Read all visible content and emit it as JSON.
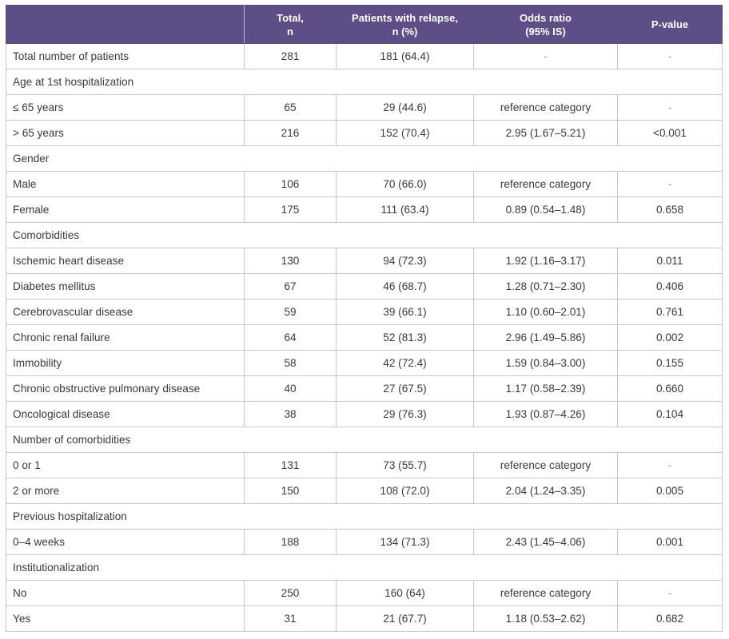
{
  "header": {
    "col0": "",
    "col1_line1": "Total,",
    "col1_line2": "n",
    "col2_line1": "Patients with relapse,",
    "col2_line2": "n (%)",
    "col3_line1": "Odds ratio",
    "col3_line2": "(95% IS)",
    "col4": "P-value"
  },
  "rows": [
    {
      "type": "data",
      "label": "Total number of patients",
      "total": "281",
      "relapse": "181 (64.4)",
      "or": "-",
      "p": "-"
    },
    {
      "type": "section",
      "label": "Age at 1st hospitalization"
    },
    {
      "type": "data",
      "label": "≤ 65 years",
      "total": "65",
      "relapse": "29 (44.6)",
      "or": "reference category",
      "p": "-"
    },
    {
      "type": "data",
      "label": "> 65 years",
      "total": "216",
      "relapse": "152 (70.4)",
      "or": "2.95 (1.67–5.21)",
      "p": "<0.001"
    },
    {
      "type": "section",
      "label": "Gender"
    },
    {
      "type": "data",
      "label": "Male",
      "total": "106",
      "relapse": "70 (66.0)",
      "or": "reference category",
      "p": "-"
    },
    {
      "type": "data",
      "label": "Female",
      "total": "175",
      "relapse": "111 (63.4)",
      "or": "0.89 (0.54–1.48)",
      "p": "0.658"
    },
    {
      "type": "section",
      "label": "Comorbidities"
    },
    {
      "type": "data",
      "label": "Ischemic heart disease",
      "total": "130",
      "relapse": "94 (72.3)",
      "or": "1.92 (1.16–3.17)",
      "p": "0.011"
    },
    {
      "type": "data",
      "label": "Diabetes mellitus",
      "total": "67",
      "relapse": "46 (68.7)",
      "or": "1.28 (0.71–2.30)",
      "p": "0.406"
    },
    {
      "type": "data",
      "label": "Cerebrovascular disease",
      "total": "59",
      "relapse": "39 (66.1)",
      "or": "1.10 (0.60–2.01)",
      "p": "0.761"
    },
    {
      "type": "data",
      "label": "Chronic renal failure",
      "total": "64",
      "relapse": "52 (81.3)",
      "or": "2.96 (1.49–5.86)",
      "p": "0.002"
    },
    {
      "type": "data",
      "label": "Immobility",
      "total": "58",
      "relapse": "42 (72.4)",
      "or": "1.59 (0.84–3.00)",
      "p": "0.155"
    },
    {
      "type": "data",
      "label": "Chronic obstructive pulmonary disease",
      "total": "40",
      "relapse": "27 (67.5)",
      "or": "1.17 (0.58–2.39)",
      "p": "0.660"
    },
    {
      "type": "data",
      "label": "Oncological disease",
      "total": "38",
      "relapse": "29 (76.3)",
      "or": "1.93 (0.87–4.26)",
      "p": "0.104"
    },
    {
      "type": "section",
      "label": "Number of comorbidities"
    },
    {
      "type": "data",
      "label": "0 or 1",
      "total": "131",
      "relapse": "73 (55.7)",
      "or": "reference category",
      "p": "-"
    },
    {
      "type": "data",
      "label": "2 or more",
      "total": "150",
      "relapse": "108 (72.0)",
      "or": "2.04 (1.24–3.35)",
      "p": "0.005"
    },
    {
      "type": "section",
      "label": "Previous hospitalization"
    },
    {
      "type": "data",
      "label": "0–4 weeks",
      "total": "188",
      "relapse": "134 (71.3)",
      "or": "2.43 (1.45–4.06)",
      "p": "0.001"
    },
    {
      "type": "section",
      "label": "Institutionalization"
    },
    {
      "type": "data",
      "label": "No",
      "total": "250",
      "relapse": "160 (64)",
      "or": "reference category",
      "p": "-"
    },
    {
      "type": "data",
      "label": "Yes",
      "total": "31",
      "relapse": "21 (67.7)",
      "or": "1.18 (0.53–2.62)",
      "p": "0.682"
    }
  ],
  "colors": {
    "header_bg": "#5d4e87",
    "header_text": "#ffffff",
    "border": "#c6c6c6",
    "text": "#3a3a3a"
  }
}
